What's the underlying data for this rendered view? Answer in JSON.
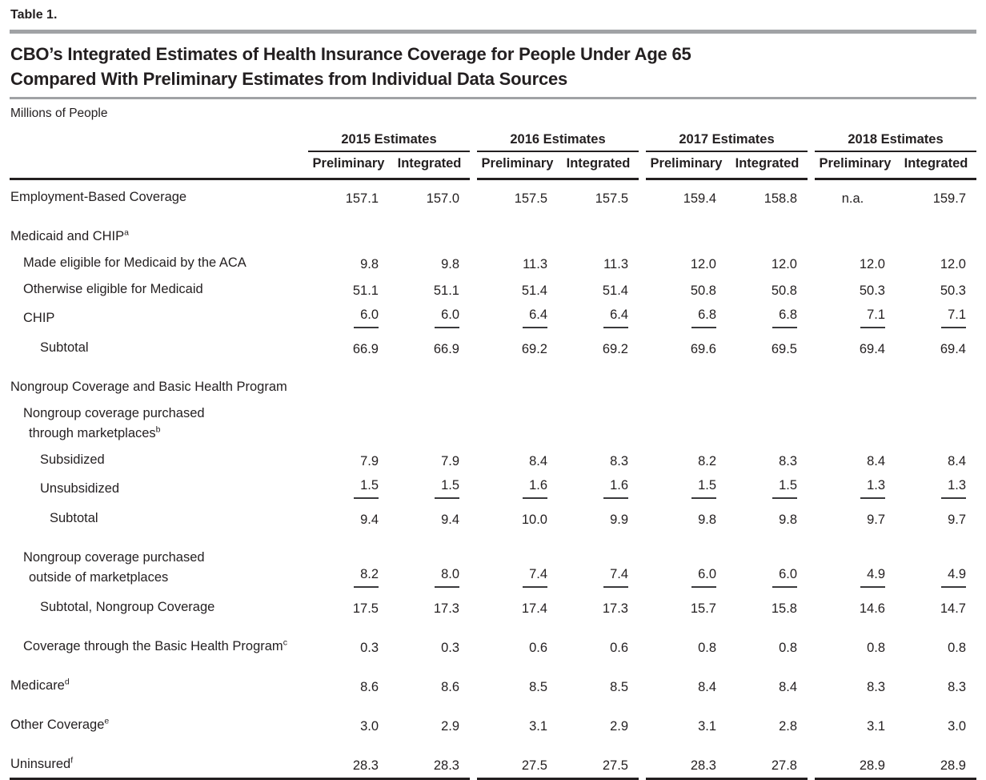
{
  "page": {
    "table_label": "Table 1.",
    "title_line1": "CBO’s Integrated Estimates of Health Insurance Coverage for People Under Age 65",
    "title_line2": "Compared With Preliminary Estimates from Individual Data Sources",
    "units_label": "Millions of People"
  },
  "colors": {
    "text": "#231f20",
    "rule_gray": "#a0a2a5",
    "rule_black": "#231f20"
  },
  "table": {
    "year_groups": [
      {
        "label": "2015 Estimates"
      },
      {
        "label": "2016 Estimates"
      },
      {
        "label": "2017 Estimates"
      },
      {
        "label": "2018 Estimates"
      }
    ],
    "sub_headers": [
      "Preliminary",
      "Integrated"
    ],
    "rows": [
      {
        "type": "data",
        "label": "Employment-Based Coverage",
        "indent": 0,
        "first": true,
        "values": [
          "157.1",
          "157.0",
          "157.5",
          "157.5",
          "159.4",
          "158.8",
          "n.a.",
          "159.7"
        ]
      },
      {
        "type": "spacer"
      },
      {
        "type": "data",
        "label": "Medicaid and CHIP",
        "sup": "a",
        "indent": 0,
        "values": []
      },
      {
        "type": "data",
        "label": "Made eligible for Medicaid by the ACA",
        "indent": 1,
        "values": [
          "9.8",
          "9.8",
          "11.3",
          "11.3",
          "12.0",
          "12.0",
          "12.0",
          "12.0"
        ]
      },
      {
        "type": "data",
        "label": "Otherwise eligible for Medicaid",
        "indent": 1,
        "values": [
          "51.1",
          "51.1",
          "51.4",
          "51.4",
          "50.8",
          "50.8",
          "50.3",
          "50.3"
        ]
      },
      {
        "type": "data",
        "label": "CHIP",
        "indent": 1,
        "underline": true,
        "values": [
          "6.0",
          "6.0",
          "6.4",
          "6.4",
          "6.8",
          "6.8",
          "7.1",
          "7.1"
        ]
      },
      {
        "type": "data",
        "label": "Subtotal",
        "indent": 2,
        "subtotal": true,
        "values": [
          "66.9",
          "66.9",
          "69.2",
          "69.2",
          "69.6",
          "69.5",
          "69.4",
          "69.4"
        ]
      },
      {
        "type": "spacer"
      },
      {
        "type": "data",
        "label": "Nongroup Coverage and Basic Health Program",
        "indent": 0,
        "values": []
      },
      {
        "type": "data",
        "label": "Nongroup coverage purchased",
        "label2": "through marketplaces",
        "sup2": "b",
        "indent": 1,
        "values": []
      },
      {
        "type": "data",
        "label": "Subsidized",
        "indent": 2,
        "values": [
          "7.9",
          "7.9",
          "8.4",
          "8.3",
          "8.2",
          "8.3",
          "8.4",
          "8.4"
        ]
      },
      {
        "type": "data",
        "label": "Unsubsidized",
        "indent": 2,
        "underline": true,
        "values": [
          "1.5",
          "1.5",
          "1.6",
          "1.6",
          "1.5",
          "1.5",
          "1.3",
          "1.3"
        ]
      },
      {
        "type": "data",
        "label": "Subtotal",
        "indent": 3,
        "subtotal": true,
        "values": [
          "9.4",
          "9.4",
          "10.0",
          "9.9",
          "9.8",
          "9.8",
          "9.7",
          "9.7"
        ]
      },
      {
        "type": "spacer"
      },
      {
        "type": "data",
        "label": "Nongroup coverage purchased",
        "label2": "outside of marketplaces",
        "indent": 1,
        "underline": true,
        "values": [
          "8.2",
          "8.0",
          "7.4",
          "7.4",
          "6.0",
          "6.0",
          "4.9",
          "4.9"
        ]
      },
      {
        "type": "data",
        "label": "Subtotal, Nongroup Coverage",
        "indent": 2,
        "subtotal": true,
        "values": [
          "17.5",
          "17.3",
          "17.4",
          "17.3",
          "15.7",
          "15.8",
          "14.6",
          "14.7"
        ]
      },
      {
        "type": "spacer"
      },
      {
        "type": "data",
        "label": "Coverage through the Basic Health Program",
        "sup": "c",
        "indent": 1,
        "values": [
          "0.3",
          "0.3",
          "0.6",
          "0.6",
          "0.8",
          "0.8",
          "0.8",
          "0.8"
        ]
      },
      {
        "type": "spacer"
      },
      {
        "type": "data",
        "label": "Medicare",
        "sup": "d",
        "indent": 0,
        "values": [
          "8.6",
          "8.6",
          "8.5",
          "8.5",
          "8.4",
          "8.4",
          "8.3",
          "8.3"
        ]
      },
      {
        "type": "spacer"
      },
      {
        "type": "data",
        "label": "Other Coverage",
        "sup": "e",
        "indent": 0,
        "values": [
          "3.0",
          "2.9",
          "3.1",
          "2.9",
          "3.1",
          "2.8",
          "3.1",
          "3.0"
        ]
      },
      {
        "type": "spacer"
      },
      {
        "type": "data",
        "label": "Uninsured",
        "sup": "f",
        "indent": 0,
        "last": true,
        "values": [
          "28.3",
          "28.3",
          "27.5",
          "27.5",
          "28.3",
          "27.8",
          "28.9",
          "28.9"
        ]
      }
    ]
  }
}
